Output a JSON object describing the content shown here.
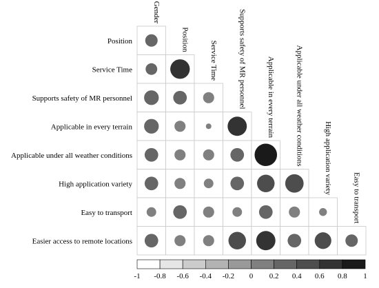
{
  "chart_data": {
    "type": "heatmap",
    "variables": [
      "Gender",
      "Position",
      "Service Time",
      "Supports safety of MR personnel",
      "Applicable in every terrain",
      "Applicable under all weather conditions",
      "High application variety",
      "Easy to transport",
      "Easier access to remote locations"
    ],
    "correlations": [
      {
        "row": "Position",
        "col": "Gender",
        "value": 0.25
      },
      {
        "row": "Service Time",
        "col": "Gender",
        "value": 0.22
      },
      {
        "row": "Service Time",
        "col": "Position",
        "value": 0.62
      },
      {
        "row": "Supports safety of MR personnel",
        "col": "Gender",
        "value": 0.35
      },
      {
        "row": "Supports safety of MR personnel",
        "col": "Position",
        "value": 0.3
      },
      {
        "row": "Supports safety of MR personnel",
        "col": "Service Time",
        "value": 0.2
      },
      {
        "row": "Applicable in every terrain",
        "col": "Gender",
        "value": 0.35
      },
      {
        "row": "Applicable in every terrain",
        "col": "Position",
        "value": 0.2
      },
      {
        "row": "Applicable in every terrain",
        "col": "Service Time",
        "value": 0.05
      },
      {
        "row": "Applicable in every terrain",
        "col": "Supports safety of MR personnel",
        "value": 0.6
      },
      {
        "row": "Applicable under all weather conditions",
        "col": "Gender",
        "value": 0.3
      },
      {
        "row": "Applicable under all weather conditions",
        "col": "Position",
        "value": 0.2
      },
      {
        "row": "Applicable under all weather conditions",
        "col": "Service Time",
        "value": 0.2
      },
      {
        "row": "Applicable under all weather conditions",
        "col": "Supports safety of MR personnel",
        "value": 0.3
      },
      {
        "row": "Applicable under all weather conditions",
        "col": "Applicable in every terrain",
        "value": 0.82
      },
      {
        "row": "High application variety",
        "col": "Gender",
        "value": 0.3
      },
      {
        "row": "High application variety",
        "col": "Position",
        "value": 0.2
      },
      {
        "row": "High application variety",
        "col": "Service Time",
        "value": 0.15
      },
      {
        "row": "High application variety",
        "col": "Supports safety of MR personnel",
        "value": 0.3
      },
      {
        "row": "High application variety",
        "col": "Applicable in every terrain",
        "value": 0.5
      },
      {
        "row": "High application variety",
        "col": "Applicable under all weather conditions",
        "value": 0.55
      },
      {
        "row": "Easy to transport",
        "col": "Gender",
        "value": 0.15
      },
      {
        "row": "Easy to transport",
        "col": "Position",
        "value": 0.3
      },
      {
        "row": "Easy to transport",
        "col": "Service Time",
        "value": 0.2
      },
      {
        "row": "Easy to transport",
        "col": "Supports safety of MR personnel",
        "value": 0.15
      },
      {
        "row": "Easy to transport",
        "col": "Applicable in every terrain",
        "value": 0.3
      },
      {
        "row": "Easy to transport",
        "col": "Applicable under all weather conditions",
        "value": 0.2
      },
      {
        "row": "Easy to transport",
        "col": "High application variety",
        "value": 0.1
      },
      {
        "row": "Easier access to remote locations",
        "col": "Gender",
        "value": 0.3
      },
      {
        "row": "Easier access to remote locations",
        "col": "Position",
        "value": 0.2
      },
      {
        "row": "Easier access to remote locations",
        "col": "Service Time",
        "value": 0.2
      },
      {
        "row": "Easier access to remote locations",
        "col": "Supports safety of MR personnel",
        "value": 0.5
      },
      {
        "row": "Easier access to remote locations",
        "col": "Applicable in every terrain",
        "value": 0.6
      },
      {
        "row": "Easier access to remote locations",
        "col": "Applicable under all weather conditions",
        "value": 0.3
      },
      {
        "row": "Easier access to remote locations",
        "col": "High application variety",
        "value": 0.45
      },
      {
        "row": "Easier access to remote locations",
        "col": "Easy to transport",
        "value": 0.25
      }
    ],
    "colorbar": {
      "range": [
        -1,
        1
      ],
      "ticks": [
        "-1",
        "-0.8",
        "-0.6",
        "-0.4",
        "-0.2",
        "0",
        "0.2",
        "0.4",
        "0.6",
        "0.8",
        "1"
      ],
      "bin_colors": [
        "#ffffff",
        "#e6e6e6",
        "#cccccc",
        "#b3b3b3",
        "#999999",
        "#808080",
        "#666666",
        "#4d4d4d",
        "#333333",
        "#1a1a1a"
      ]
    },
    "legend": "bottom"
  }
}
